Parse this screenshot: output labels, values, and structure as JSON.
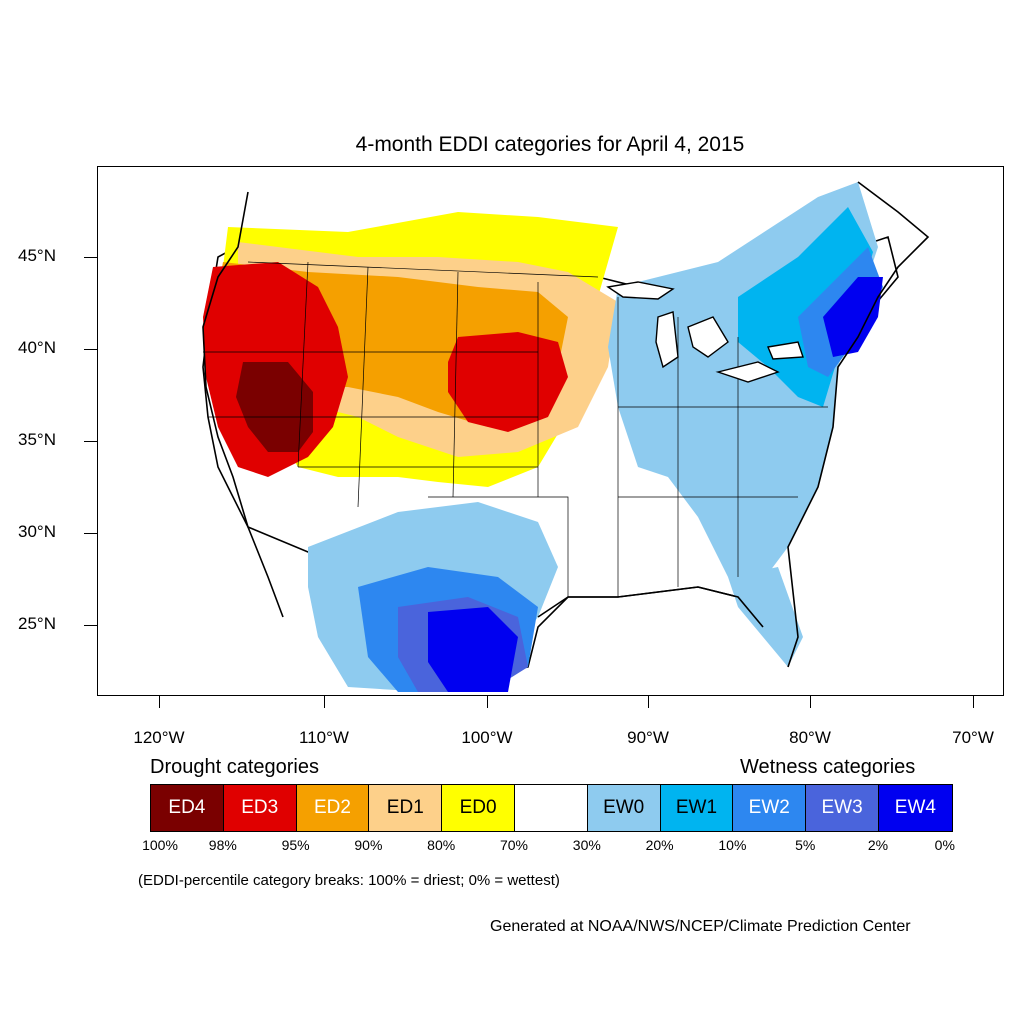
{
  "title": "4-month EDDI categories for April 4, 2015",
  "lat_labels": [
    "45°N",
    "40°N",
    "35°N",
    "30°N",
    "25°N"
  ],
  "lon_labels": [
    "120°W",
    "110°W",
    "100°W",
    "90°W",
    "80°W",
    "70°W"
  ],
  "legend": {
    "drought_heading": "Drought categories",
    "wetness_heading": "Wetness categories",
    "categories": [
      {
        "label": "ED4",
        "color": "#7a0000",
        "text_color": "#ffffff"
      },
      {
        "label": "ED3",
        "color": "#e00000",
        "text_color": "#ffffff"
      },
      {
        "label": "ED2",
        "color": "#f5a000",
        "text_color": "#ffffff"
      },
      {
        "label": "ED1",
        "color": "#fdd08a",
        "text_color": "#000000"
      },
      {
        "label": "ED0",
        "color": "#ffff00",
        "text_color": "#000000"
      },
      {
        "label": "",
        "color": "#ffffff",
        "text_color": "#000000"
      },
      {
        "label": "EW0",
        "color": "#8ecbef",
        "text_color": "#000000"
      },
      {
        "label": "EW1",
        "color": "#00b4f0",
        "text_color": "#000000"
      },
      {
        "label": "EW2",
        "color": "#2d87f0",
        "text_color": "#ffffff"
      },
      {
        "label": "EW3",
        "color": "#4a64dc",
        "text_color": "#ffffff"
      },
      {
        "label": "EW4",
        "color": "#0000f0",
        "text_color": "#ffffff"
      }
    ],
    "breaks": [
      "100%",
      "98%",
      "95%",
      "90%",
      "80%",
      "70%",
      "30%",
      "20%",
      "10%",
      "5%",
      "2%",
      "0%"
    ]
  },
  "note": "(EDDI-percentile category breaks: 100% = driest; 0% = wettest)",
  "credit": "Generated at NOAA/NWS/NCEP/Climate Prediction Center"
}
